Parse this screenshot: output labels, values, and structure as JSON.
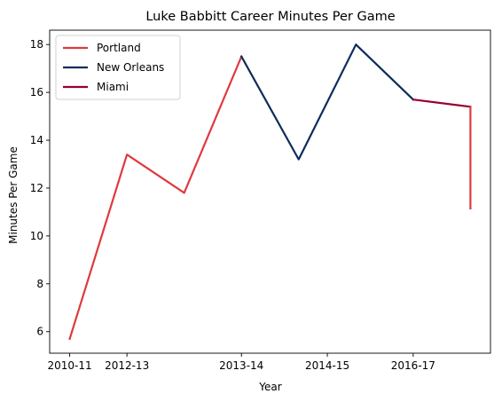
{
  "chart_data": {
    "type": "line",
    "title": "Luke Babbitt Career Minutes Per Game",
    "xlabel": "Year",
    "ylabel": "Minutes Per Game",
    "x_tick_labels": [
      "2010-11",
      "2012-13",
      "2013-14",
      "2014-15",
      "2016-17"
    ],
    "x_tick_positions": [
      0,
      1,
      3,
      4.5,
      6
    ],
    "ylim": [
      5.1,
      18.6
    ],
    "y_ticks": [
      6,
      8,
      10,
      12,
      14,
      16,
      18
    ],
    "grid": false,
    "legend_position": "top-left",
    "series": [
      {
        "name": "Portland",
        "color": "#de3a3e",
        "x": [
          0,
          1,
          2,
          3
        ],
        "y": [
          5.7,
          13.4,
          11.8,
          17.5
        ]
      },
      {
        "name": "New Orleans",
        "color": "#0c2c5a",
        "x": [
          3,
          4,
          5,
          6
        ],
        "y": [
          17.5,
          13.2,
          18.0,
          15.7
        ]
      },
      {
        "name": "Miami",
        "color": "#98002e",
        "x": [
          6,
          7
        ],
        "y": [
          15.7,
          15.4
        ]
      }
    ],
    "extra_segment": {
      "series": "Portland",
      "x": [
        7,
        7
      ],
      "y": [
        15.4,
        11.15
      ]
    }
  }
}
